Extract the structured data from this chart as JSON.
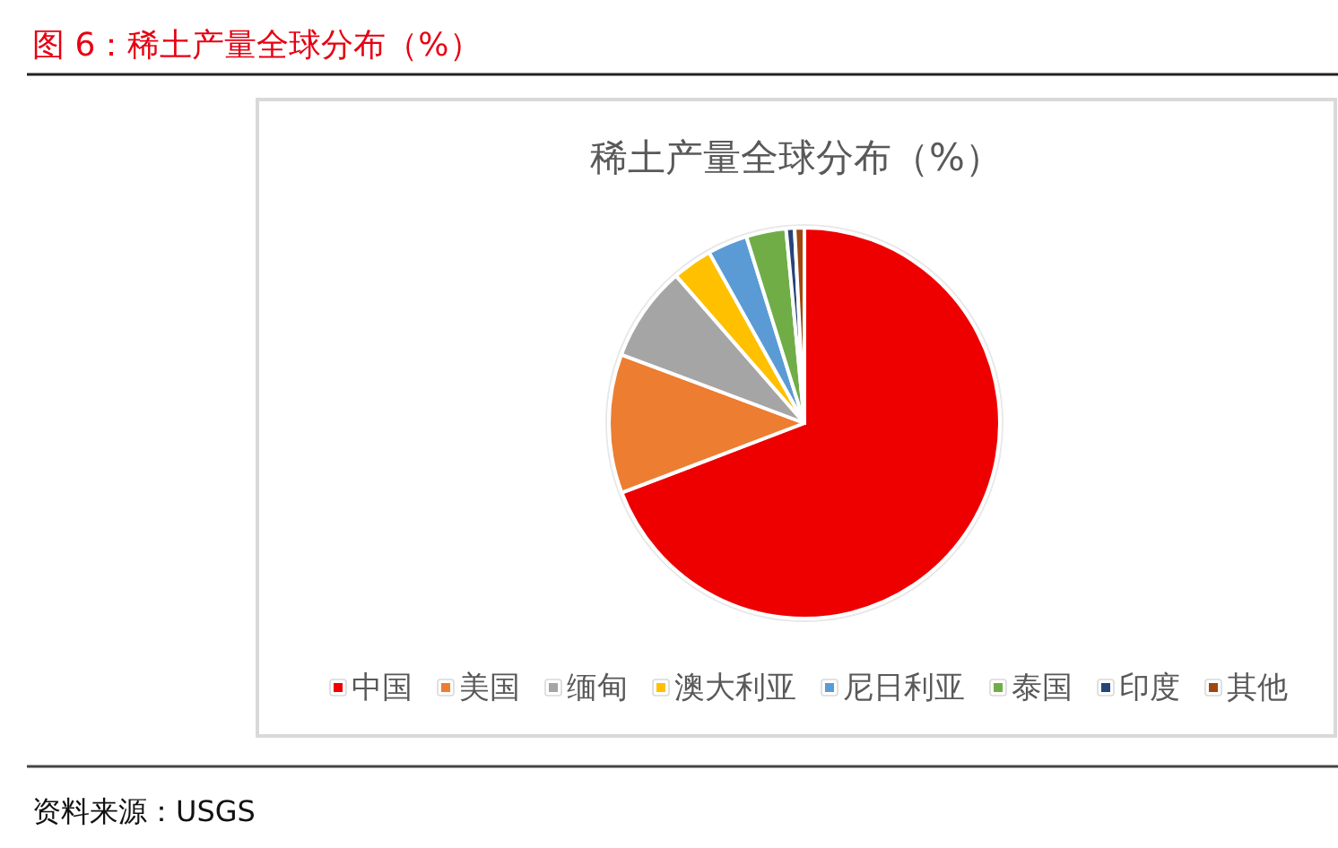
{
  "chart_data": {
    "type": "pie",
    "title": "图 6：稀土产量全球分布（%）",
    "subtitle": "稀土产量全球分布（%）",
    "categories": [
      "中国",
      "美国",
      "缅甸",
      "澳大利亚",
      "尼日利亚",
      "泰国",
      "印度",
      "其他"
    ],
    "values": [
      69.2,
      11.5,
      7.9,
      3.3,
      3.3,
      3.3,
      0.7,
      0.8
    ],
    "colors": [
      "#ee0000",
      "#ed7d31",
      "#a5a5a5",
      "#ffc000",
      "#5b9bd5",
      "#70ad47",
      "#264478",
      "#9e480e"
    ],
    "legend": "bottom",
    "annotations": [
      "资料来源：USGS"
    ]
  }
}
